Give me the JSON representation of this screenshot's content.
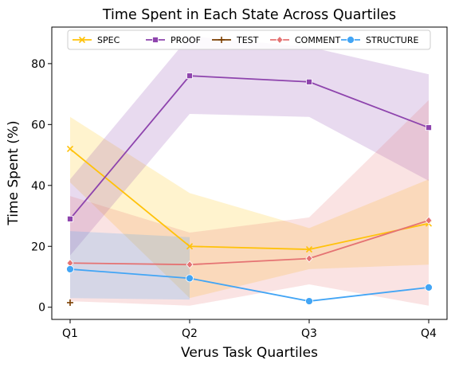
{
  "chart_data": {
    "type": "line",
    "title": "Time Spent in Each State Across Quartiles",
    "xlabel": "Verus Task Quartiles",
    "ylabel": "Time Spent (%)",
    "categories": [
      "Q1",
      "Q2",
      "Q3",
      "Q4"
    ],
    "ylim": [
      -4,
      92
    ],
    "yticks": [
      0,
      20,
      40,
      60,
      80
    ],
    "grid": false,
    "legend_position": "top",
    "series": [
      {
        "name": "SPEC",
        "color": "#FFC20A",
        "marker": "x",
        "values": [
          52,
          20,
          19,
          27.5
        ],
        "ci_low": [
          41,
          3,
          12.5,
          14
        ],
        "ci_high": [
          62.5,
          37.5,
          26,
          42
        ]
      },
      {
        "name": "PROOF",
        "color": "#8E44AD",
        "marker": "s",
        "values": [
          29,
          76,
          74,
          59
        ],
        "ci_low": [
          17,
          63.5,
          62.5,
          41.5
        ],
        "ci_high": [
          42,
          89,
          85.5,
          76.5
        ]
      },
      {
        "name": "TEST",
        "color": "#7B3F00",
        "marker": "+",
        "values": [
          1.5,
          null,
          null,
          null
        ],
        "ci_low": [
          1.5,
          null,
          null,
          null
        ],
        "ci_high": [
          1.5,
          null,
          null,
          null
        ]
      },
      {
        "name": "COMMENT",
        "color": "#E57373",
        "marker": "d",
        "values": [
          14.5,
          14,
          16,
          28.5
        ],
        "ci_low": [
          2,
          0.5,
          7.5,
          0.5
        ],
        "ci_high": [
          36.5,
          24.5,
          29.5,
          68
        ]
      },
      {
        "name": "STRUCTURE",
        "color": "#42A5F5",
        "marker": "o",
        "values": [
          12.5,
          9.5,
          2,
          6.5
        ],
        "ci_low": [
          3,
          2.5,
          null,
          null
        ],
        "ci_high": [
          25,
          23,
          null,
          null
        ]
      }
    ]
  }
}
